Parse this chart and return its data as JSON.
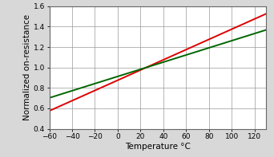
{
  "title": "",
  "xlabel": "Temperature °C",
  "ylabel": "Normalized on-resistance",
  "xlim": [
    -60,
    130
  ],
  "ylim": [
    0.4,
    1.6
  ],
  "xticks": [
    -60,
    -40,
    -20,
    0,
    20,
    40,
    60,
    80,
    100,
    120
  ],
  "yticks": [
    0.4,
    0.6,
    0.8,
    1.0,
    1.2,
    1.4,
    1.6
  ],
  "red_line": {
    "color": "#dd0000",
    "coeff": 0.005,
    "ref_temp": 25,
    "ref_val": 1.0,
    "linewidth": 1.4
  },
  "green_line": {
    "color": "#006600",
    "coeff": 0.0035,
    "ref_temp": 25,
    "ref_val": 1.0,
    "linewidth": 1.4
  },
  "grid_color": "#999999",
  "spine_color": "#666666",
  "plot_bg": "#ffffff",
  "fig_bg": "#d8d8d8",
  "xlabel_fontsize": 7.5,
  "ylabel_fontsize": 7.5,
  "tick_fontsize": 6.5
}
